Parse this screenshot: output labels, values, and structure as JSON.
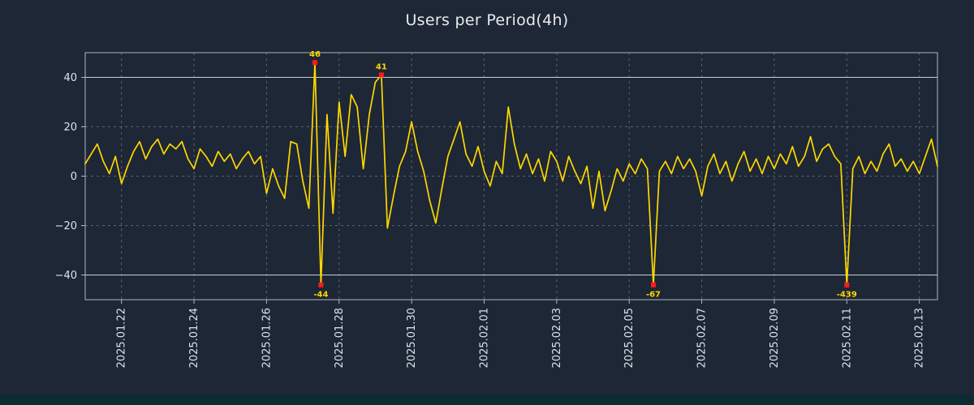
{
  "title": "Users per Period(4h)",
  "colors": {
    "background": "#1e2735",
    "bottom_bar": "#0d2b33",
    "title_text": "#e8ebee",
    "axis_text": "#dde3ea",
    "frame": "#aeb6c0",
    "grid": "#8a94a1",
    "threshold": "#c9d1d9",
    "line": "#ffd700",
    "marker": "#ff1a1a",
    "annotation": "#ffd700"
  },
  "chart_data": {
    "type": "line",
    "title": "Users per Period(4h)",
    "series_name": "Users",
    "x_start": "2025-01-21 00:00",
    "x_step_hours": 4,
    "ylim": [
      -50,
      50
    ],
    "clip_min": -44,
    "grid": true,
    "values": [
      5,
      9,
      13,
      6,
      1,
      8,
      -3,
      4,
      10,
      14,
      7,
      12,
      15,
      9,
      13,
      11,
      14,
      7,
      3,
      11,
      8,
      4,
      10,
      6,
      9,
      3,
      7,
      10,
      5,
      8,
      -7,
      3,
      -4,
      -9,
      14,
      13,
      -2,
      -13,
      46,
      -44,
      25,
      -15,
      30,
      8,
      33,
      28,
      3,
      25,
      38,
      41,
      -21,
      -8,
      4,
      10,
      22,
      10,
      2,
      -10,
      -19,
      -5,
      8,
      15,
      22,
      9,
      4,
      12,
      2,
      -4,
      6,
      1,
      28,
      13,
      3,
      9,
      1,
      7,
      -2,
      10,
      6,
      -2,
      8,
      2,
      -3,
      4,
      -13,
      2,
      -14,
      -6,
      3,
      -2,
      5,
      1,
      7,
      3,
      -67,
      2,
      6,
      1,
      8,
      3,
      7,
      2,
      -8,
      4,
      9,
      1,
      6,
      -2,
      5,
      10,
      2,
      7,
      1,
      8,
      3,
      9,
      5,
      12,
      4,
      8,
      16,
      6,
      11,
      13,
      8,
      5,
      -439,
      3,
      8,
      1,
      6,
      2,
      9,
      13,
      4,
      7,
      2,
      6,
      1,
      8,
      15,
      4
    ],
    "x_ticks": [
      {
        "index": 6,
        "label": "2025.01.22"
      },
      {
        "index": 18,
        "label": "2025.01.24"
      },
      {
        "index": 30,
        "label": "2025.01.26"
      },
      {
        "index": 42,
        "label": "2025.01.28"
      },
      {
        "index": 54,
        "label": "2025.01.30"
      },
      {
        "index": 66,
        "label": "2025.02.01"
      },
      {
        "index": 78,
        "label": "2025.02.03"
      },
      {
        "index": 90,
        "label": "2025.02.05"
      },
      {
        "index": 102,
        "label": "2025.02.07"
      },
      {
        "index": 114,
        "label": "2025.02.09"
      },
      {
        "index": 126,
        "label": "2025.02.11"
      },
      {
        "index": 138,
        "label": "2025.02.13"
      }
    ],
    "y_ticks": [
      {
        "value": 40,
        "label": "40",
        "solid": true
      },
      {
        "value": 20,
        "label": "20",
        "solid": false
      },
      {
        "value": 0,
        "label": "0",
        "solid": false
      },
      {
        "value": -20,
        "label": "−20",
        "solid": false
      },
      {
        "value": -40,
        "label": "−40",
        "solid": true
      }
    ],
    "annotations": [
      {
        "index": 38,
        "value": 46,
        "label": "46",
        "placement": "above"
      },
      {
        "index": 39,
        "value": -44,
        "label": "-44",
        "placement": "below"
      },
      {
        "index": 49,
        "value": 41,
        "label": "41",
        "placement": "above"
      },
      {
        "index": 94,
        "value": -67,
        "label": "-67",
        "placement": "below"
      },
      {
        "index": 126,
        "value": -439,
        "label": "-439",
        "placement": "below"
      }
    ]
  }
}
